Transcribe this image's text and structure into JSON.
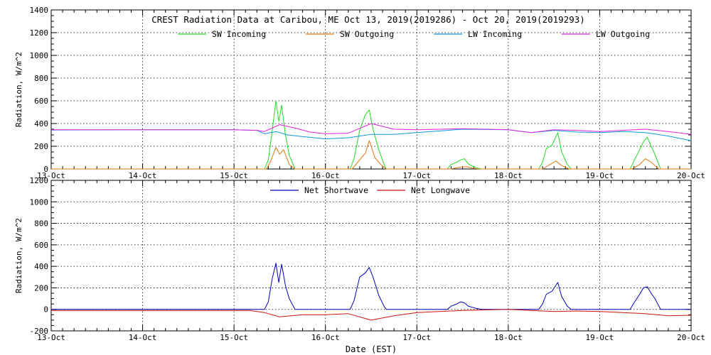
{
  "chart_data": [
    {
      "type": "line",
      "title": "CREST Radiation Data at Caribou, ME   Oct 13, 2019(2019286) - Oct 20, 2019(2019293)",
      "xlabel": "",
      "ylabel": "Radiation, W/m^2",
      "ylim": [
        0,
        1400
      ],
      "yticks": [
        0,
        200,
        400,
        600,
        800,
        1000,
        1200,
        1400
      ],
      "xlim": [
        "2019-10-13",
        "2019-10-20"
      ],
      "xticks": [
        "13-Oct",
        "14-Oct",
        "15-Oct",
        "16-Oct",
        "17-Oct",
        "18-Oct",
        "19-Oct",
        "20-Oct"
      ],
      "grid": true,
      "legend": "top",
      "series": [
        {
          "name": "SW Incoming",
          "color": "#22dd22",
          "points": [
            [
              "2019-10-13 00:00",
              0
            ],
            [
              "2019-10-15 08:00",
              0
            ],
            [
              "2019-10-15 09:00",
              80
            ],
            [
              "2019-10-15 10:00",
              330
            ],
            [
              "2019-10-15 11:00",
              600
            ],
            [
              "2019-10-15 11:45",
              420
            ],
            [
              "2019-10-15 12:30",
              560
            ],
            [
              "2019-10-15 13:30",
              300
            ],
            [
              "2019-10-15 14:30",
              120
            ],
            [
              "2019-10-15 16:00",
              0
            ],
            [
              "2019-10-16 06:30",
              0
            ],
            [
              "2019-10-16 07:30",
              90
            ],
            [
              "2019-10-16 09:00",
              340
            ],
            [
              "2019-10-16 10:30",
              480
            ],
            [
              "2019-10-16 11:30",
              520
            ],
            [
              "2019-10-16 12:30",
              350
            ],
            [
              "2019-10-16 14:00",
              170
            ],
            [
              "2019-10-16 15:30",
              30
            ],
            [
              "2019-10-16 16:00",
              0
            ],
            [
              "2019-10-17 08:00",
              0
            ],
            [
              "2019-10-17 09:00",
              40
            ],
            [
              "2019-10-17 10:30",
              60
            ],
            [
              "2019-10-17 11:30",
              80
            ],
            [
              "2019-10-17 12:30",
              90
            ],
            [
              "2019-10-17 13:30",
              45
            ],
            [
              "2019-10-17 15:30",
              10
            ],
            [
              "2019-10-17 17:00",
              0
            ],
            [
              "2019-10-18 08:00",
              0
            ],
            [
              "2019-10-18 09:00",
              60
            ],
            [
              "2019-10-18 10:00",
              180
            ],
            [
              "2019-10-18 11:30",
              210
            ],
            [
              "2019-10-18 13:00",
              320
            ],
            [
              "2019-10-18 14:00",
              150
            ],
            [
              "2019-10-18 15:30",
              40
            ],
            [
              "2019-10-18 16:30",
              0
            ],
            [
              "2019-10-19 08:00",
              0
            ],
            [
              "2019-10-19 09:00",
              70
            ],
            [
              "2019-10-19 10:30",
              170
            ],
            [
              "2019-10-19 11:30",
              240
            ],
            [
              "2019-10-19 12:30",
              280
            ],
            [
              "2019-10-19 13:30",
              200
            ],
            [
              "2019-10-19 14:30",
              130
            ],
            [
              "2019-10-19 16:00",
              0
            ],
            [
              "2019-10-20 00:00",
              0
            ]
          ]
        },
        {
          "name": "SW Outgoing",
          "color": "#dd7711",
          "points": [
            [
              "2019-10-13 00:00",
              0
            ],
            [
              "2019-10-15 08:30",
              0
            ],
            [
              "2019-10-15 09:30",
              60
            ],
            [
              "2019-10-15 11:00",
              190
            ],
            [
              "2019-10-15 12:00",
              130
            ],
            [
              "2019-10-15 13:00",
              170
            ],
            [
              "2019-10-15 14:30",
              40
            ],
            [
              "2019-10-15 16:00",
              0
            ],
            [
              "2019-10-16 07:00",
              0
            ],
            [
              "2019-10-16 09:00",
              80
            ],
            [
              "2019-10-16 10:30",
              140
            ],
            [
              "2019-10-16 11:30",
              250
            ],
            [
              "2019-10-16 13:00",
              100
            ],
            [
              "2019-10-16 14:30",
              40
            ],
            [
              "2019-10-16 16:00",
              0
            ],
            [
              "2019-10-17 09:00",
              0
            ],
            [
              "2019-10-17 11:00",
              15
            ],
            [
              "2019-10-17 13:00",
              20
            ],
            [
              "2019-10-17 15:00",
              5
            ],
            [
              "2019-10-17 16:30",
              0
            ],
            [
              "2019-10-18 09:00",
              0
            ],
            [
              "2019-10-18 11:00",
              40
            ],
            [
              "2019-10-18 12:30",
              70
            ],
            [
              "2019-10-18 14:00",
              30
            ],
            [
              "2019-10-18 16:00",
              0
            ],
            [
              "2019-10-19 08:30",
              0
            ],
            [
              "2019-10-19 10:30",
              40
            ],
            [
              "2019-10-19 12:00",
              90
            ],
            [
              "2019-10-19 13:30",
              60
            ],
            [
              "2019-10-19 15:30",
              0
            ],
            [
              "2019-10-20 00:00",
              0
            ]
          ]
        },
        {
          "name": "LW Incoming",
          "color": "#1199dd",
          "points": [
            [
              "2019-10-13 00:00",
              343
            ],
            [
              "2019-10-14 00:00",
              345
            ],
            [
              "2019-10-15 00:00",
              345
            ],
            [
              "2019-10-15 06:00",
              340
            ],
            [
              "2019-10-15 08:00",
              310
            ],
            [
              "2019-10-15 11:00",
              330
            ],
            [
              "2019-10-15 14:00",
              300
            ],
            [
              "2019-10-15 18:00",
              285
            ],
            [
              "2019-10-16 00:00",
              265
            ],
            [
              "2019-10-16 06:00",
              275
            ],
            [
              "2019-10-16 12:00",
              305
            ],
            [
              "2019-10-16 18:00",
              305
            ],
            [
              "2019-10-17 00:00",
              320
            ],
            [
              "2019-10-17 12:00",
              350
            ],
            [
              "2019-10-18 00:00",
              345
            ],
            [
              "2019-10-18 06:00",
              320
            ],
            [
              "2019-10-18 09:00",
              330
            ],
            [
              "2019-10-18 12:00",
              340
            ],
            [
              "2019-10-18 18:00",
              325
            ],
            [
              "2019-10-19 00:00",
              320
            ],
            [
              "2019-10-19 06:00",
              330
            ],
            [
              "2019-10-19 12:00",
              320
            ],
            [
              "2019-10-19 18:00",
              290
            ],
            [
              "2019-10-20 00:00",
              250
            ]
          ]
        },
        {
          "name": "LW Outgoing",
          "color": "#dd22dd",
          "points": [
            [
              "2019-10-13 00:00",
              345
            ],
            [
              "2019-10-14 00:00",
              345
            ],
            [
              "2019-10-15 00:00",
              345
            ],
            [
              "2019-10-15 06:00",
              340
            ],
            [
              "2019-10-15 08:00",
              330
            ],
            [
              "2019-10-15 12:00",
              390
            ],
            [
              "2019-10-15 16:00",
              360
            ],
            [
              "2019-10-15 20:00",
              325
            ],
            [
              "2019-10-16 00:00",
              310
            ],
            [
              "2019-10-16 06:00",
              315
            ],
            [
              "2019-10-16 12:00",
              400
            ],
            [
              "2019-10-16 18:00",
              350
            ],
            [
              "2019-10-17 00:00",
              345
            ],
            [
              "2019-10-17 12:00",
              355
            ],
            [
              "2019-10-18 00:00",
              345
            ],
            [
              "2019-10-18 06:00",
              320
            ],
            [
              "2019-10-18 12:00",
              345
            ],
            [
              "2019-10-18 18:00",
              340
            ],
            [
              "2019-10-19 00:00",
              330
            ],
            [
              "2019-10-19 12:00",
              350
            ],
            [
              "2019-10-19 18:00",
              330
            ],
            [
              "2019-10-20 00:00",
              305
            ]
          ]
        }
      ]
    },
    {
      "type": "line",
      "title": "",
      "xlabel": "Date (EST)",
      "ylabel": "Radiation, W/m^2",
      "ylim": [
        -200,
        1200
      ],
      "yticks": [
        -200,
        0,
        200,
        400,
        600,
        800,
        1000,
        1200
      ],
      "xlim": [
        "2019-10-13",
        "2019-10-20"
      ],
      "xticks": [
        "13-Oct",
        "14-Oct",
        "15-Oct",
        "16-Oct",
        "17-Oct",
        "18-Oct",
        "19-Oct",
        "20-Oct"
      ],
      "grid": true,
      "legend": "top",
      "series": [
        {
          "name": "Net Shortwave",
          "color": "#0000bb",
          "points": [
            [
              "2019-10-13 00:00",
              0
            ],
            [
              "2019-10-15 08:00",
              0
            ],
            [
              "2019-10-15 09:00",
              70
            ],
            [
              "2019-10-15 10:00",
              280
            ],
            [
              "2019-10-15 11:00",
              430
            ],
            [
              "2019-10-15 11:45",
              250
            ],
            [
              "2019-10-15 12:30",
              420
            ],
            [
              "2019-10-15 13:30",
              220
            ],
            [
              "2019-10-15 14:30",
              100
            ],
            [
              "2019-10-15 16:00",
              0
            ],
            [
              "2019-10-16 06:30",
              0
            ],
            [
              "2019-10-16 07:30",
              80
            ],
            [
              "2019-10-16 09:00",
              300
            ],
            [
              "2019-10-16 10:30",
              340
            ],
            [
              "2019-10-16 11:30",
              390
            ],
            [
              "2019-10-16 12:30",
              300
            ],
            [
              "2019-10-16 14:00",
              130
            ],
            [
              "2019-10-16 15:30",
              20
            ],
            [
              "2019-10-16 16:00",
              0
            ],
            [
              "2019-10-17 08:00",
              0
            ],
            [
              "2019-10-17 09:00",
              30
            ],
            [
              "2019-10-17 10:30",
              50
            ],
            [
              "2019-10-17 11:30",
              70
            ],
            [
              "2019-10-17 12:30",
              60
            ],
            [
              "2019-10-17 13:30",
              30
            ],
            [
              "2019-10-17 15:30",
              10
            ],
            [
              "2019-10-17 17:00",
              0
            ],
            [
              "2019-10-18 08:00",
              0
            ],
            [
              "2019-10-18 09:00",
              50
            ],
            [
              "2019-10-18 10:00",
              140
            ],
            [
              "2019-10-18 11:30",
              170
            ],
            [
              "2019-10-18 13:00",
              250
            ],
            [
              "2019-10-18 14:00",
              120
            ],
            [
              "2019-10-18 15:30",
              30
            ],
            [
              "2019-10-18 16:30",
              0
            ],
            [
              "2019-10-19 08:00",
              0
            ],
            [
              "2019-10-19 09:00",
              60
            ],
            [
              "2019-10-19 10:30",
              140
            ],
            [
              "2019-10-19 11:30",
              200
            ],
            [
              "2019-10-19 12:30",
              210
            ],
            [
              "2019-10-19 13:30",
              150
            ],
            [
              "2019-10-19 14:30",
              100
            ],
            [
              "2019-10-19 16:00",
              0
            ],
            [
              "2019-10-20 00:00",
              0
            ]
          ]
        },
        {
          "name": "Net Longwave",
          "color": "#cc1111",
          "points": [
            [
              "2019-10-13 00:00",
              -10
            ],
            [
              "2019-10-15 04:00",
              -10
            ],
            [
              "2019-10-15 08:00",
              -30
            ],
            [
              "2019-10-15 12:00",
              -70
            ],
            [
              "2019-10-15 18:00",
              -50
            ],
            [
              "2019-10-16 00:00",
              -50
            ],
            [
              "2019-10-16 06:00",
              -40
            ],
            [
              "2019-10-16 12:00",
              -100
            ],
            [
              "2019-10-16 18:00",
              -60
            ],
            [
              "2019-10-17 00:00",
              -30
            ],
            [
              "2019-10-17 12:00",
              -10
            ],
            [
              "2019-10-18 00:00",
              0
            ],
            [
              "2019-10-18 06:00",
              -10
            ],
            [
              "2019-10-18 12:00",
              -20
            ],
            [
              "2019-10-18 18:00",
              -15
            ],
            [
              "2019-10-19 00:00",
              -20
            ],
            [
              "2019-10-19 06:00",
              -30
            ],
            [
              "2019-10-19 12:00",
              -40
            ],
            [
              "2019-10-19 18:00",
              -60
            ],
            [
              "2019-10-20 00:00",
              -55
            ]
          ]
        }
      ]
    }
  ]
}
